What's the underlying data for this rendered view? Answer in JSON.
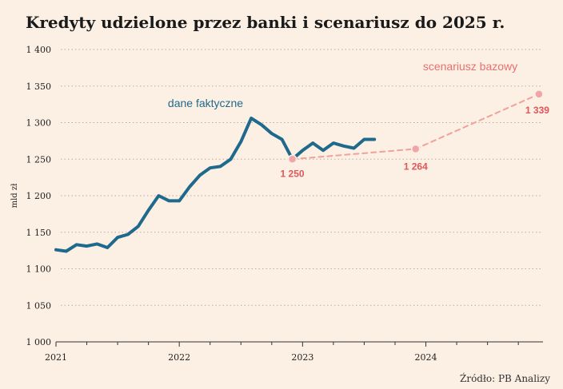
{
  "chart_data": {
    "type": "line",
    "title": "Kredyty udzielone przez banki i scenariusz do 2025 r.",
    "ylabel": "mld zł",
    "source": "Źródło: PB Analizy",
    "ylim": [
      1000,
      1400
    ],
    "y_ticks": [
      1000,
      1050,
      1100,
      1150,
      1200,
      1250,
      1300,
      1350,
      1400
    ],
    "y_tick_labels": [
      "1 000",
      "1 050",
      "1 100",
      "1 150",
      "1 200",
      "1 250",
      "1 300",
      "1 350",
      "1 400"
    ],
    "xlim": [
      2021.0,
      2024.95
    ],
    "x_ticks": [
      2021,
      2022,
      2023,
      2024
    ],
    "x_tick_labels": [
      "2021",
      "2022",
      "2023",
      "2024"
    ],
    "grid": true,
    "series": [
      {
        "name": "dane faktyczne",
        "color": "#1f6a8c",
        "style": "solid",
        "x": [
          2021.0,
          2021.083,
          2021.167,
          2021.25,
          2021.333,
          2021.417,
          2021.5,
          2021.583,
          2021.667,
          2021.75,
          2021.833,
          2021.917,
          2022.0,
          2022.083,
          2022.167,
          2022.25,
          2022.333,
          2022.417,
          2022.5,
          2022.583,
          2022.667,
          2022.75,
          2022.833,
          2022.917,
          2023.0,
          2023.083,
          2023.167,
          2023.25,
          2023.333,
          2023.417,
          2023.5,
          2023.583
        ],
        "y": [
          1126,
          1124,
          1133,
          1131,
          1134,
          1129,
          1143,
          1147,
          1158,
          1180,
          1200,
          1193,
          1193,
          1212,
          1228,
          1238,
          1240,
          1250,
          1274,
          1306,
          1297,
          1285,
          1277,
          1250,
          1262,
          1272,
          1262,
          1272,
          1268,
          1265,
          1277,
          1277
        ]
      },
      {
        "name": "scenariusz bazowy",
        "color": "#f0a19b",
        "style": "dashed",
        "x": [
          2022.917,
          2023.917,
          2024.917
        ],
        "y": [
          1250,
          1264,
          1339
        ]
      }
    ],
    "annotations": [
      {
        "text": "dane faktyczne",
        "color": "#1f6a8c"
      },
      {
        "text": "scenariusz bazowy",
        "color": "#e8706f"
      }
    ],
    "point_labels": [
      {
        "x": 2022.917,
        "y": 1250,
        "text": "1 250"
      },
      {
        "x": 2023.917,
        "y": 1264,
        "text": "1 264"
      },
      {
        "x": 2024.917,
        "y": 1339,
        "text": "1 339"
      }
    ]
  }
}
